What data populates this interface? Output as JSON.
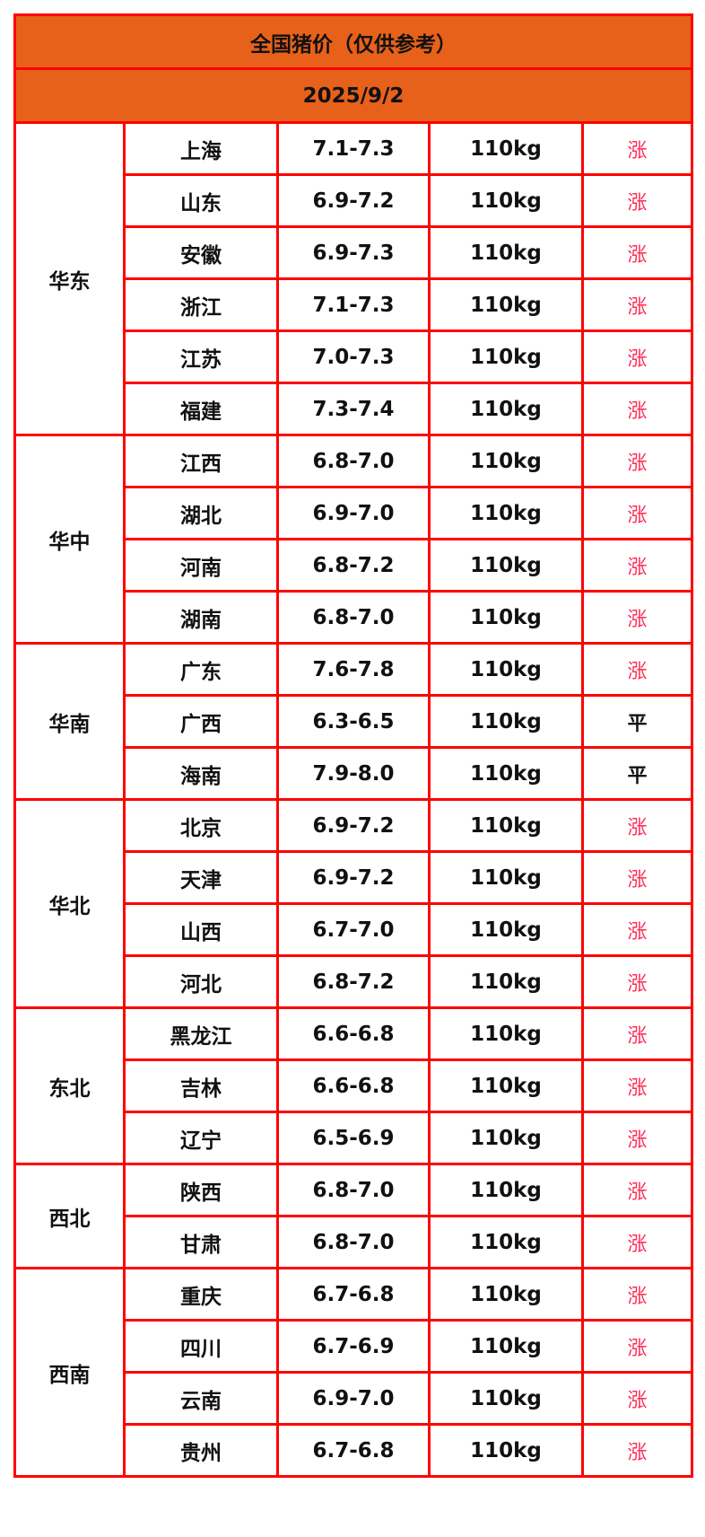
{
  "title": "全国猪价（仅供参考）",
  "date": "2025/9/2",
  "colors": {
    "header_bg": "#e8611a",
    "border": "#ff0000",
    "rise": "#ff2d55"
  },
  "regions": [
    {
      "name": "华东",
      "rows": [
        {
          "province": "上海",
          "price": "7.1-7.3",
          "weight": "110kg",
          "trend": "涨"
        },
        {
          "province": "山东",
          "price": "6.9-7.2",
          "weight": "110kg",
          "trend": "涨"
        },
        {
          "province": "安徽",
          "price": "6.9-7.3",
          "weight": "110kg",
          "trend": "涨"
        },
        {
          "province": "浙江",
          "price": "7.1-7.3",
          "weight": "110kg",
          "trend": "涨"
        },
        {
          "province": "江苏",
          "price": "7.0-7.3",
          "weight": "110kg",
          "trend": "涨"
        },
        {
          "province": "福建",
          "price": "7.3-7.4",
          "weight": "110kg",
          "trend": "涨"
        }
      ]
    },
    {
      "name": "华中",
      "rows": [
        {
          "province": "江西",
          "price": "6.8-7.0",
          "weight": "110kg",
          "trend": "涨"
        },
        {
          "province": "湖北",
          "price": "6.9-7.0",
          "weight": "110kg",
          "trend": "涨"
        },
        {
          "province": "河南",
          "price": "6.8-7.2",
          "weight": "110kg",
          "trend": "涨"
        },
        {
          "province": "湖南",
          "price": "6.8-7.0",
          "weight": "110kg",
          "trend": "涨"
        }
      ]
    },
    {
      "name": "华南",
      "rows": [
        {
          "province": "广东",
          "price": "7.6-7.8",
          "weight": "110kg",
          "trend": "涨"
        },
        {
          "province": "广西",
          "price": "6.3-6.5",
          "weight": "110kg",
          "trend": "平"
        },
        {
          "province": "海南",
          "price": "7.9-8.0",
          "weight": "110kg",
          "trend": "平"
        }
      ]
    },
    {
      "name": "华北",
      "rows": [
        {
          "province": "北京",
          "price": "6.9-7.2",
          "weight": "110kg",
          "trend": "涨"
        },
        {
          "province": "天津",
          "price": "6.9-7.2",
          "weight": "110kg",
          "trend": "涨"
        },
        {
          "province": "山西",
          "price": "6.7-7.0",
          "weight": "110kg",
          "trend": "涨"
        },
        {
          "province": "河北",
          "price": "6.8-7.2",
          "weight": "110kg",
          "trend": "涨"
        }
      ]
    },
    {
      "name": "东北",
      "rows": [
        {
          "province": "黑龙江",
          "price": "6.6-6.8",
          "weight": "110kg",
          "trend": "涨"
        },
        {
          "province": "吉林",
          "price": "6.6-6.8",
          "weight": "110kg",
          "trend": "涨"
        },
        {
          "province": "辽宁",
          "price": "6.5-6.9",
          "weight": "110kg",
          "trend": "涨"
        }
      ]
    },
    {
      "name": "西北",
      "rows": [
        {
          "province": "陕西",
          "price": "6.8-7.0",
          "weight": "110kg",
          "trend": "涨"
        },
        {
          "province": "甘肃",
          "price": "6.8-7.0",
          "weight": "110kg",
          "trend": "涨"
        }
      ]
    },
    {
      "name": "西南",
      "rows": [
        {
          "province": "重庆",
          "price": "6.7-6.8",
          "weight": "110kg",
          "trend": "涨"
        },
        {
          "province": "四川",
          "price": "6.7-6.9",
          "weight": "110kg",
          "trend": "涨"
        },
        {
          "province": "云南",
          "price": "6.9-7.0",
          "weight": "110kg",
          "trend": "涨"
        },
        {
          "province": "贵州",
          "price": "6.7-6.8",
          "weight": "110kg",
          "trend": "涨"
        }
      ]
    }
  ]
}
